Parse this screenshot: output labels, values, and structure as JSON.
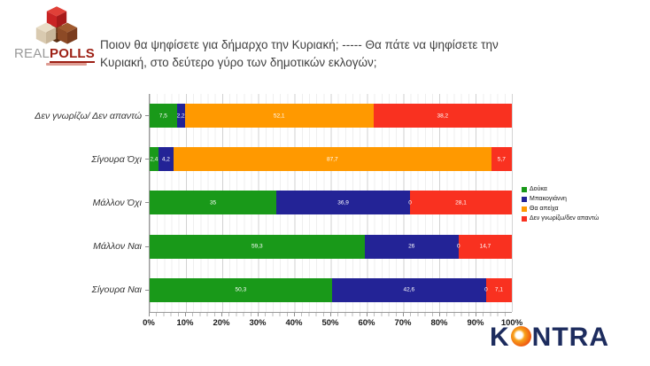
{
  "logo": {
    "real": "REAL",
    "polls": "POLLS"
  },
  "title": {
    "line1": "Ποιον θα ψηφίσετε για δήμαρχο την Κυριακή;  -----  Θα πάτε να ψηφίσετε την",
    "line2": "Κυριακή, στο δεύτερο γύρο των δημοτικών εκλογών;"
  },
  "chart_data": {
    "type": "bar",
    "orientation": "horizontal_stacked",
    "unit": "%",
    "series": [
      {
        "name": "Δούκα",
        "color": "#199919"
      },
      {
        "name": "Μπακογιάννη",
        "color": "#232396"
      },
      {
        "name": "Θα απείχα",
        "color": "#FF9900"
      },
      {
        "name": "Δεν γνωρίζω/δεν απαντώ",
        "color": "#F93120"
      }
    ],
    "rows": [
      {
        "category": "Δεν γνωρίζω/ Δεν απαντώ",
        "values": [
          7.5,
          2.2,
          52.1,
          38.2
        ],
        "labels": [
          "7,5",
          "2,2",
          "52,1",
          "38,2"
        ]
      },
      {
        "category": "Σίγουρα Όχι",
        "values": [
          2.4,
          4.2,
          87.7,
          5.7
        ],
        "labels": [
          "2,4",
          "4,2",
          "87,7",
          "5,7"
        ]
      },
      {
        "category": "Μάλλον Όχι",
        "values": [
          35,
          36.9,
          0,
          28.1
        ],
        "labels": [
          "35",
          "36,9",
          "0",
          "28,1"
        ]
      },
      {
        "category": "Μάλλον Ναι",
        "values": [
          59.3,
          26,
          0,
          14.7
        ],
        "labels": [
          "59,3",
          "26",
          "0",
          "14,7"
        ]
      },
      {
        "category": "Σίγουρα Ναι",
        "values": [
          50.3,
          42.6,
          0,
          7.1
        ],
        "labels": [
          "50,3",
          "42,6",
          "0",
          "7,1"
        ]
      }
    ],
    "x_axis": {
      "min": 0,
      "max": 100,
      "tick_step": 10,
      "minor_grid_step": 2,
      "ticks": [
        "0%",
        "10%",
        "20%",
        "30%",
        "40%",
        "50%",
        "60%",
        "70%",
        "80%",
        "90%",
        "100%"
      ]
    },
    "legend_position": "right",
    "grid": true
  },
  "footer_logo": {
    "k": "K",
    "ntra": "NTRA"
  }
}
